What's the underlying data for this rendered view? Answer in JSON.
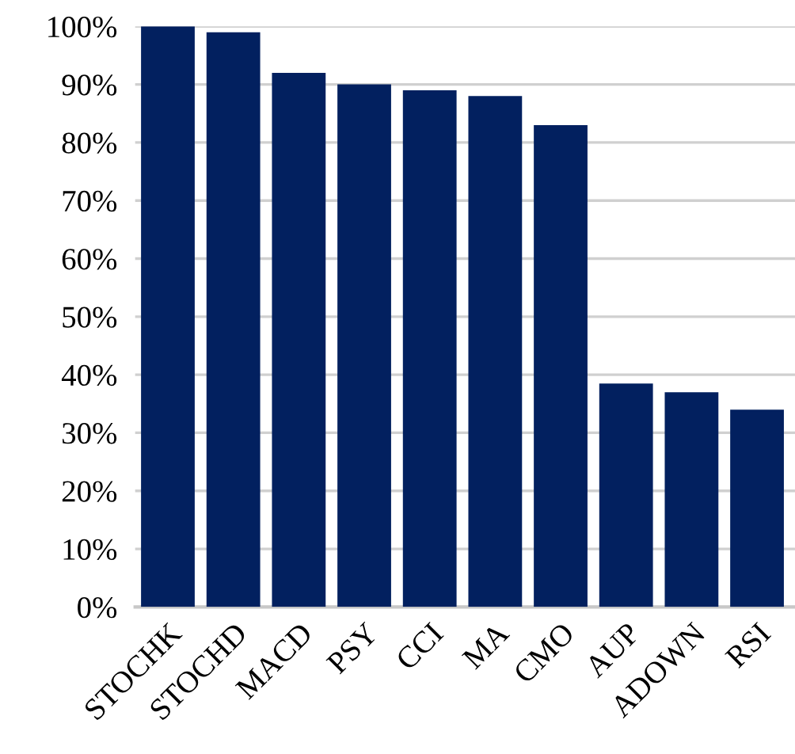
{
  "chart_data": {
    "type": "bar",
    "categories": [
      "STOCHK",
      "STOCHD",
      "MACD",
      "PSY",
      "CCI",
      "MA",
      "CMO",
      "AUP",
      "ADOWN",
      "RSI"
    ],
    "values": [
      100,
      99,
      92,
      90,
      89,
      88,
      83,
      38.5,
      37,
      34
    ],
    "color": "#02205f",
    "ylim": [
      0,
      100
    ],
    "yticks": [
      {
        "value": 0,
        "label": "0%"
      },
      {
        "value": 10,
        "label": "10%"
      },
      {
        "value": 20,
        "label": "20%"
      },
      {
        "value": 30,
        "label": "30%"
      },
      {
        "value": 40,
        "label": "40%"
      },
      {
        "value": 50,
        "label": "50%"
      },
      {
        "value": 60,
        "label": "60%"
      },
      {
        "value": 70,
        "label": "70%"
      },
      {
        "value": 80,
        "label": "80%"
      },
      {
        "value": 90,
        "label": "90%"
      },
      {
        "value": 100,
        "label": "100%"
      }
    ],
    "grid": "y"
  }
}
